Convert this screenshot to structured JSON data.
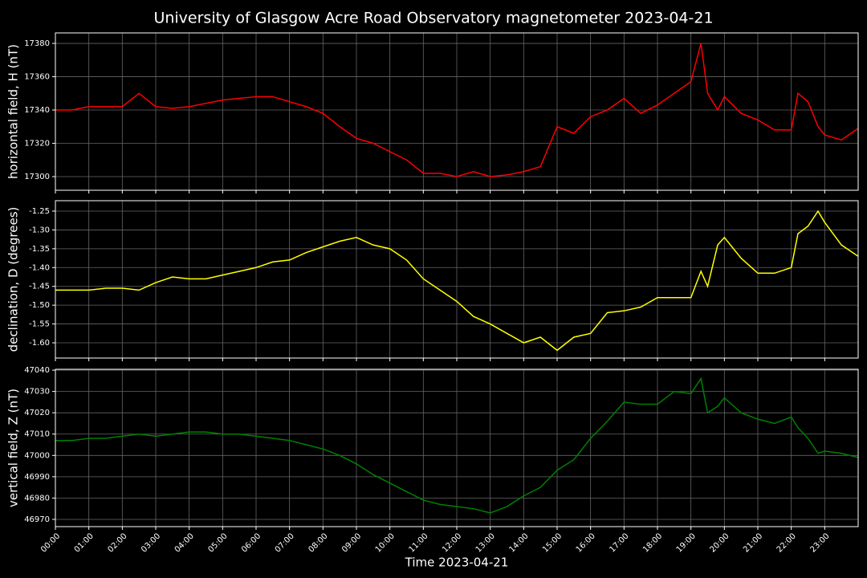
{
  "chart_data": {
    "type": "line",
    "title": "University of Glasgow Acre Road Observatory magnetometer 2023-04-21",
    "xlabel": "Time 2023-04-21",
    "grid": true,
    "xlim": [
      0,
      24
    ],
    "xticks": [
      {
        "value": 0,
        "label": "00:00"
      },
      {
        "value": 1,
        "label": "01:00"
      },
      {
        "value": 2,
        "label": "02:00"
      },
      {
        "value": 3,
        "label": "03:00"
      },
      {
        "value": 4,
        "label": "04:00"
      },
      {
        "value": 5,
        "label": "05:00"
      },
      {
        "value": 6,
        "label": "06:00"
      },
      {
        "value": 7,
        "label": "07:00"
      },
      {
        "value": 8,
        "label": "08:00"
      },
      {
        "value": 9,
        "label": "09:00"
      },
      {
        "value": 10,
        "label": "10:00"
      },
      {
        "value": 11,
        "label": "11:00"
      },
      {
        "value": 12,
        "label": "12:00"
      },
      {
        "value": 13,
        "label": "13:00"
      },
      {
        "value": 14,
        "label": "14:00"
      },
      {
        "value": 15,
        "label": "15:00"
      },
      {
        "value": 16,
        "label": "16:00"
      },
      {
        "value": 17,
        "label": "17:00"
      },
      {
        "value": 18,
        "label": "18:00"
      },
      {
        "value": 19,
        "label": "19:00"
      },
      {
        "value": 20,
        "label": "20:00"
      },
      {
        "value": 21,
        "label": "21:00"
      },
      {
        "value": 22,
        "label": "22:00"
      },
      {
        "value": 23,
        "label": "23:00"
      }
    ],
    "x": [
      0,
      0.5,
      1,
      1.5,
      2,
      2.5,
      3,
      3.5,
      4,
      4.5,
      5,
      5.5,
      6,
      6.5,
      7,
      7.5,
      8,
      8.5,
      9,
      9.5,
      10,
      10.5,
      11,
      11.5,
      12,
      12.5,
      13,
      13.5,
      14,
      14.5,
      15,
      15.5,
      16,
      16.5,
      17,
      17.5,
      18,
      18.5,
      19,
      19.3,
      19.5,
      19.8,
      20,
      20.5,
      21,
      21.5,
      22,
      22.2,
      22.5,
      22.8,
      23,
      23.5,
      24
    ],
    "panels": [
      {
        "ylabel": "horizontal field, H (nT)",
        "color": "#ff0000",
        "ylim": [
          17291.8,
          17386.3
        ],
        "yticks": [
          17300,
          17320,
          17340,
          17360,
          17380
        ],
        "values": [
          17340,
          17340,
          17342,
          17342,
          17342,
          17350,
          17342,
          17341,
          17342,
          17344,
          17346,
          17347,
          17348,
          17348,
          17345,
          17342,
          17338,
          17330,
          17323,
          17320,
          17315,
          17310,
          17302,
          17302,
          17300,
          17303,
          17300,
          17301,
          17303,
          17306,
          17330,
          17326,
          17336,
          17340,
          17347,
          17338,
          17343,
          17350,
          17357,
          17380,
          17350,
          17340,
          17348,
          17338,
          17334,
          17328,
          17328,
          17350,
          17345,
          17330,
          17325,
          17322,
          17329
        ]
      },
      {
        "ylabel": "declination, D (degrees)",
        "color": "#ffff00",
        "ylim": [
          -1.6405,
          -1.2223
        ],
        "yticks": [
          {
            "value": -1.6,
            "label": "-1.60"
          },
          {
            "value": -1.55,
            "label": "-1.55"
          },
          {
            "value": -1.5,
            "label": "-1.50"
          },
          {
            "value": -1.45,
            "label": "-1.45"
          },
          {
            "value": -1.4,
            "label": "-1.40"
          },
          {
            "value": -1.35,
            "label": "-1.35"
          },
          {
            "value": -1.3,
            "label": "-1.30"
          },
          {
            "value": -1.25,
            "label": "-1.25"
          }
        ],
        "values": [
          -1.46,
          -1.46,
          -1.46,
          -1.455,
          -1.455,
          -1.46,
          -1.44,
          -1.425,
          -1.43,
          -1.43,
          -1.42,
          -1.41,
          -1.4,
          -1.385,
          -1.38,
          -1.36,
          -1.345,
          -1.33,
          -1.32,
          -1.34,
          -1.35,
          -1.38,
          -1.43,
          -1.46,
          -1.49,
          -1.53,
          -1.55,
          -1.575,
          -1.6,
          -1.585,
          -1.62,
          -1.585,
          -1.575,
          -1.52,
          -1.515,
          -1.505,
          -1.48,
          -1.48,
          -1.48,
          -1.41,
          -1.45,
          -1.34,
          -1.32,
          -1.375,
          -1.415,
          -1.415,
          -1.4,
          -1.31,
          -1.29,
          -1.25,
          -1.28,
          -1.34,
          -1.37
        ]
      },
      {
        "ylabel": "vertical field, Z (nT)",
        "color": "#008000",
        "ylim": [
          46966.6,
          47040.4
        ],
        "yticks": [
          46970,
          46980,
          46990,
          47000,
          47010,
          47020,
          47030,
          47040
        ],
        "values": [
          47007,
          47007,
          47008,
          47008,
          47009,
          47010,
          47009,
          47010,
          47011,
          47011,
          47010,
          47010,
          47009,
          47008,
          47007,
          47005,
          47003,
          47000,
          46996,
          46991,
          46987,
          46983,
          46979,
          46977,
          46976,
          46975,
          46973,
          46976,
          46981,
          46985,
          46993,
          46998,
          47008,
          47016,
          47025,
          47024,
          47024,
          47030,
          47029,
          47036,
          47020,
          47023,
          47027,
          47020,
          47017,
          47015,
          47018,
          47013,
          47008,
          47001,
          47002,
          47001,
          46999
        ]
      }
    ]
  }
}
